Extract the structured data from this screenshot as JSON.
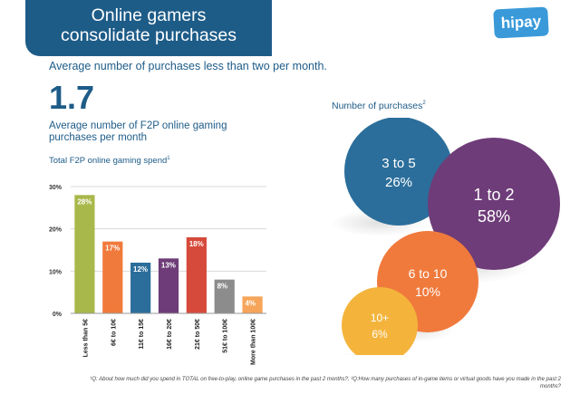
{
  "header": {
    "title_line1": "Online gamers",
    "title_line2": "consolidate purchases",
    "logo_text": "hipay"
  },
  "subtitle": "Average number of purchases less than two per month.",
  "highlight": {
    "value": "1.7",
    "description": "Average number of F2P online gaming purchases per month"
  },
  "footnote": "¹Q: About how much did you spend in TOTAL on free-to-play, online game purchases in the past 2 months?; ²Q:How many purchases of in-game items or virtual goods have you made in the past 2 months?",
  "colors": {
    "brand": "#1e5c88",
    "bar_green": "#a9b84a",
    "bar_orange": "#f07a3c",
    "bar_blue": "#2b6e9b",
    "bar_purple": "#6e3c78",
    "bar_red": "#d64a3b",
    "bar_gray": "#8c8c8c",
    "bar_amber": "#f6a55a",
    "bar_yellow": "#f4b43c"
  },
  "chart_data": [
    {
      "type": "bar",
      "title": "Total F2P online gaming spend",
      "title_sup": "1",
      "categories": [
        "Less than 5€",
        "6€ to 10€",
        "11€ to 15€",
        "16€ to 20€",
        "21€ to 50€",
        "51€ to 100€",
        "More than 100€"
      ],
      "values": [
        28,
        17,
        12,
        13,
        18,
        8,
        4
      ],
      "value_labels": [
        "28%",
        "17%",
        "12%",
        "13%",
        "18%",
        "8%",
        "4%"
      ],
      "bar_colors": [
        "#a9b84a",
        "#f07a3c",
        "#2b6e9b",
        "#6e3c78",
        "#d64a3b",
        "#8c8c8c",
        "#f6a55a"
      ],
      "ylim": [
        0,
        30
      ],
      "yticks": [
        0,
        10,
        20,
        30
      ],
      "ytick_labels": [
        "0%",
        "10%",
        "20%",
        "30%"
      ],
      "grid": true
    },
    {
      "type": "bubble",
      "title": "Number of purchases",
      "title_sup": "2",
      "categories": [
        "3 to 5",
        "1 to 2",
        "6 to 10",
        "10+"
      ],
      "values": [
        26,
        58,
        10,
        6
      ],
      "value_labels": [
        "26%",
        "58%",
        "10%",
        "6%"
      ],
      "bubble_colors": [
        "#2b6e9b",
        "#6e3c78",
        "#f07a3c",
        "#f4b43c"
      ]
    }
  ]
}
